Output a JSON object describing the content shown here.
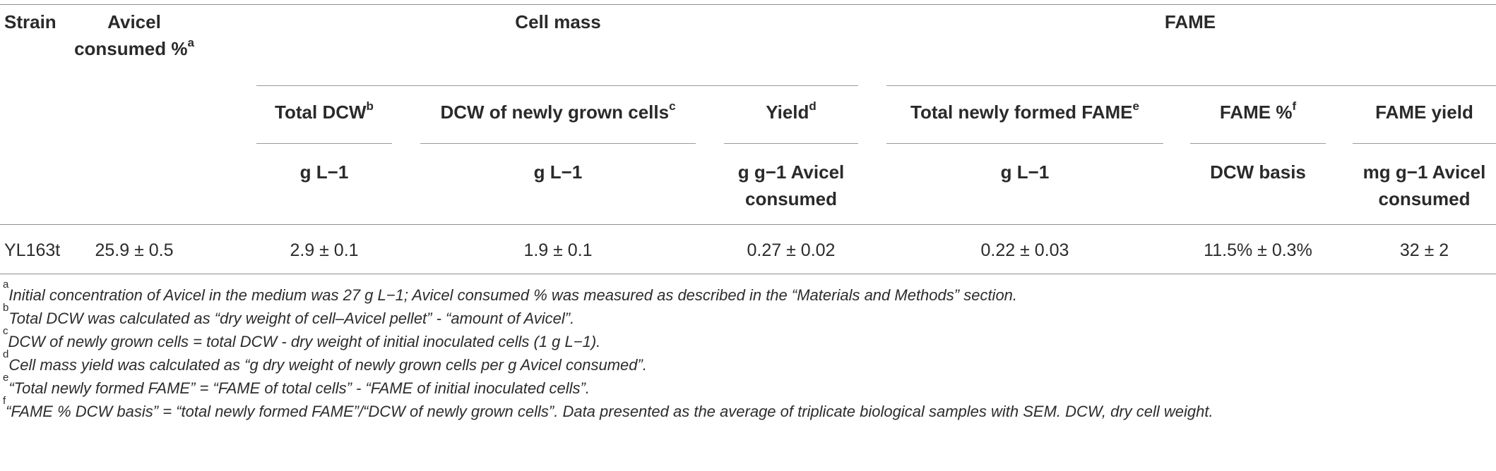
{
  "headers": {
    "strain": "Strain",
    "avicel_line1": "Avicel",
    "avicel_line2": "consumed %",
    "avicel_sup": "a",
    "cell_mass": "Cell mass",
    "fame": "FAME",
    "total_dcw": "Total DCW",
    "total_dcw_sup": "b",
    "dcw_new": "DCW of newly grown cells",
    "dcw_new_sup": "c",
    "yield": "Yield",
    "yield_sup": "d",
    "total_fame": "Total newly formed FAME",
    "total_fame_sup": "e",
    "fame_pct": "FAME %",
    "fame_pct_sup": "f",
    "fame_yield": "FAME yield"
  },
  "units": {
    "total_dcw": "g L−1",
    "dcw_new": "g L−1",
    "yield_line1": "g g−1 Avicel",
    "yield_line2": "consumed",
    "total_fame": "g L−1",
    "fame_pct": "DCW basis",
    "fame_yield_line1": "mg g−1 Avicel",
    "fame_yield_line2": "consumed"
  },
  "rows": [
    {
      "strain": "YL163t",
      "avicel_consumed": "25.9 ± 0.5",
      "total_dcw": "2.9 ± 0.1",
      "dcw_new": "1.9 ± 0.1",
      "yield": "0.27 ± 0.02",
      "total_fame": "0.22 ± 0.03",
      "fame_pct": "11.5% ± 0.3%",
      "fame_yield": "32 ± 2"
    }
  ],
  "footnotes": [
    {
      "mark": "a",
      "text": "Initial concentration of Avicel in the medium was 27 g L−1; Avicel consumed % was measured as described in the “Materials and Methods” section."
    },
    {
      "mark": "b",
      "text": "Total DCW was calculated as “dry weight of cell–Avicel pellet” - “amount of Avicel”."
    },
    {
      "mark": "c",
      "text": "DCW of newly grown cells = total DCW - dry weight of initial inoculated cells (1 g L−1)."
    },
    {
      "mark": "d",
      "text": "Cell mass yield was calculated as “g dry weight of newly grown cells per g Avicel consumed”."
    },
    {
      "mark": "e",
      "text": "“Total newly formed FAME” = “FAME of total cells” - “FAME of initial inoculated cells”."
    },
    {
      "mark": "f",
      "text": "“FAME % DCW basis” = “total newly formed FAME”/“DCW of newly grown cells”. Data presented as the average of triplicate biological samples with SEM. DCW, dry cell weight."
    }
  ]
}
